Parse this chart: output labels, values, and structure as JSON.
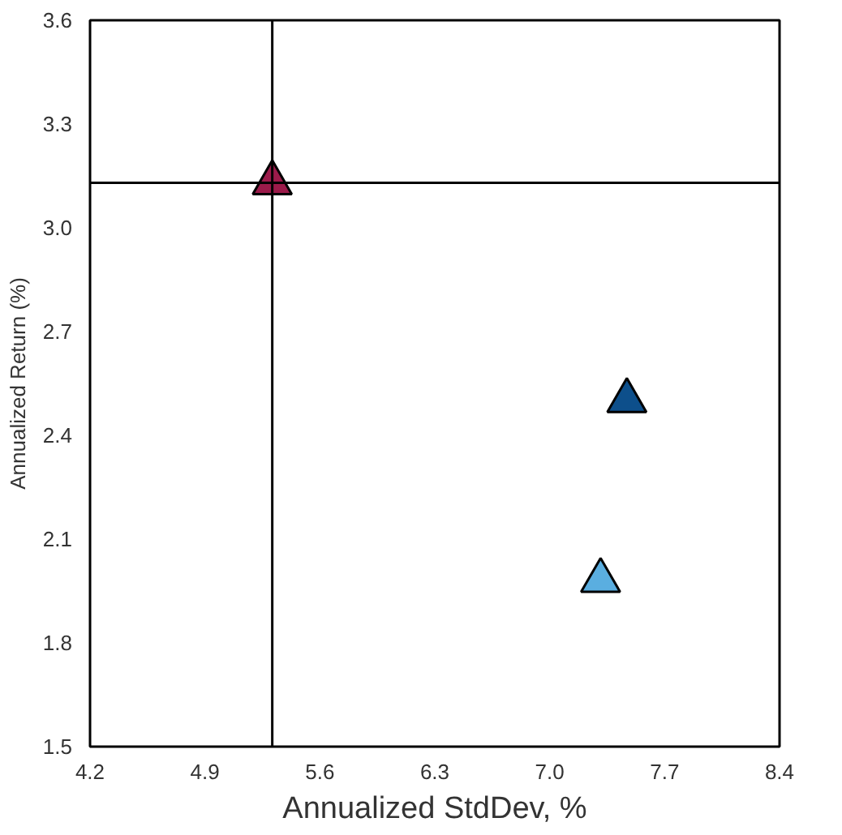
{
  "chart_data": {
    "type": "scatter",
    "xlabel": "Annualized StdDev, %",
    "ylabel": "Annualized Return (%)",
    "marker": "triangle",
    "grid": false,
    "series": [
      {
        "color": "#9b1b4a",
        "x": [
          5.31
        ],
        "values": [
          3.13
        ]
      },
      {
        "color": "#0d4f8b",
        "x": [
          7.47
        ],
        "values": [
          2.5
        ]
      },
      {
        "color": "#5aaee0",
        "x": [
          7.31
        ],
        "values": [
          1.98
        ]
      }
    ],
    "xlim": [
      4.2,
      8.4
    ],
    "xticks": [
      {
        "value": 4.2,
        "label": "4.2"
      },
      {
        "value": 4.9,
        "label": "4.9"
      },
      {
        "value": 5.6,
        "label": "5.6"
      },
      {
        "value": 6.3,
        "label": "6.3"
      },
      {
        "value": 7.0,
        "label": "7.0"
      },
      {
        "value": 7.7,
        "label": "7.7"
      },
      {
        "value": 8.4,
        "label": "8.4"
      }
    ],
    "ylim": [
      1.5,
      3.6
    ],
    "yticks": [
      {
        "value": 1.5,
        "label": "1.5"
      },
      {
        "value": 1.8,
        "label": "1.8"
      },
      {
        "value": 2.1,
        "label": "2.1"
      },
      {
        "value": 2.4,
        "label": "2.4"
      },
      {
        "value": 2.7,
        "label": "2.7"
      },
      {
        "value": 3.0,
        "label": "3.0"
      },
      {
        "value": 3.3,
        "label": "3.3"
      },
      {
        "value": 3.6,
        "label": "3.6"
      }
    ],
    "ref_lines": [
      {
        "axis": "x",
        "value": 5.31,
        "color": "#000000"
      },
      {
        "axis": "y",
        "value": 3.13,
        "color": "#000000"
      }
    ]
  }
}
